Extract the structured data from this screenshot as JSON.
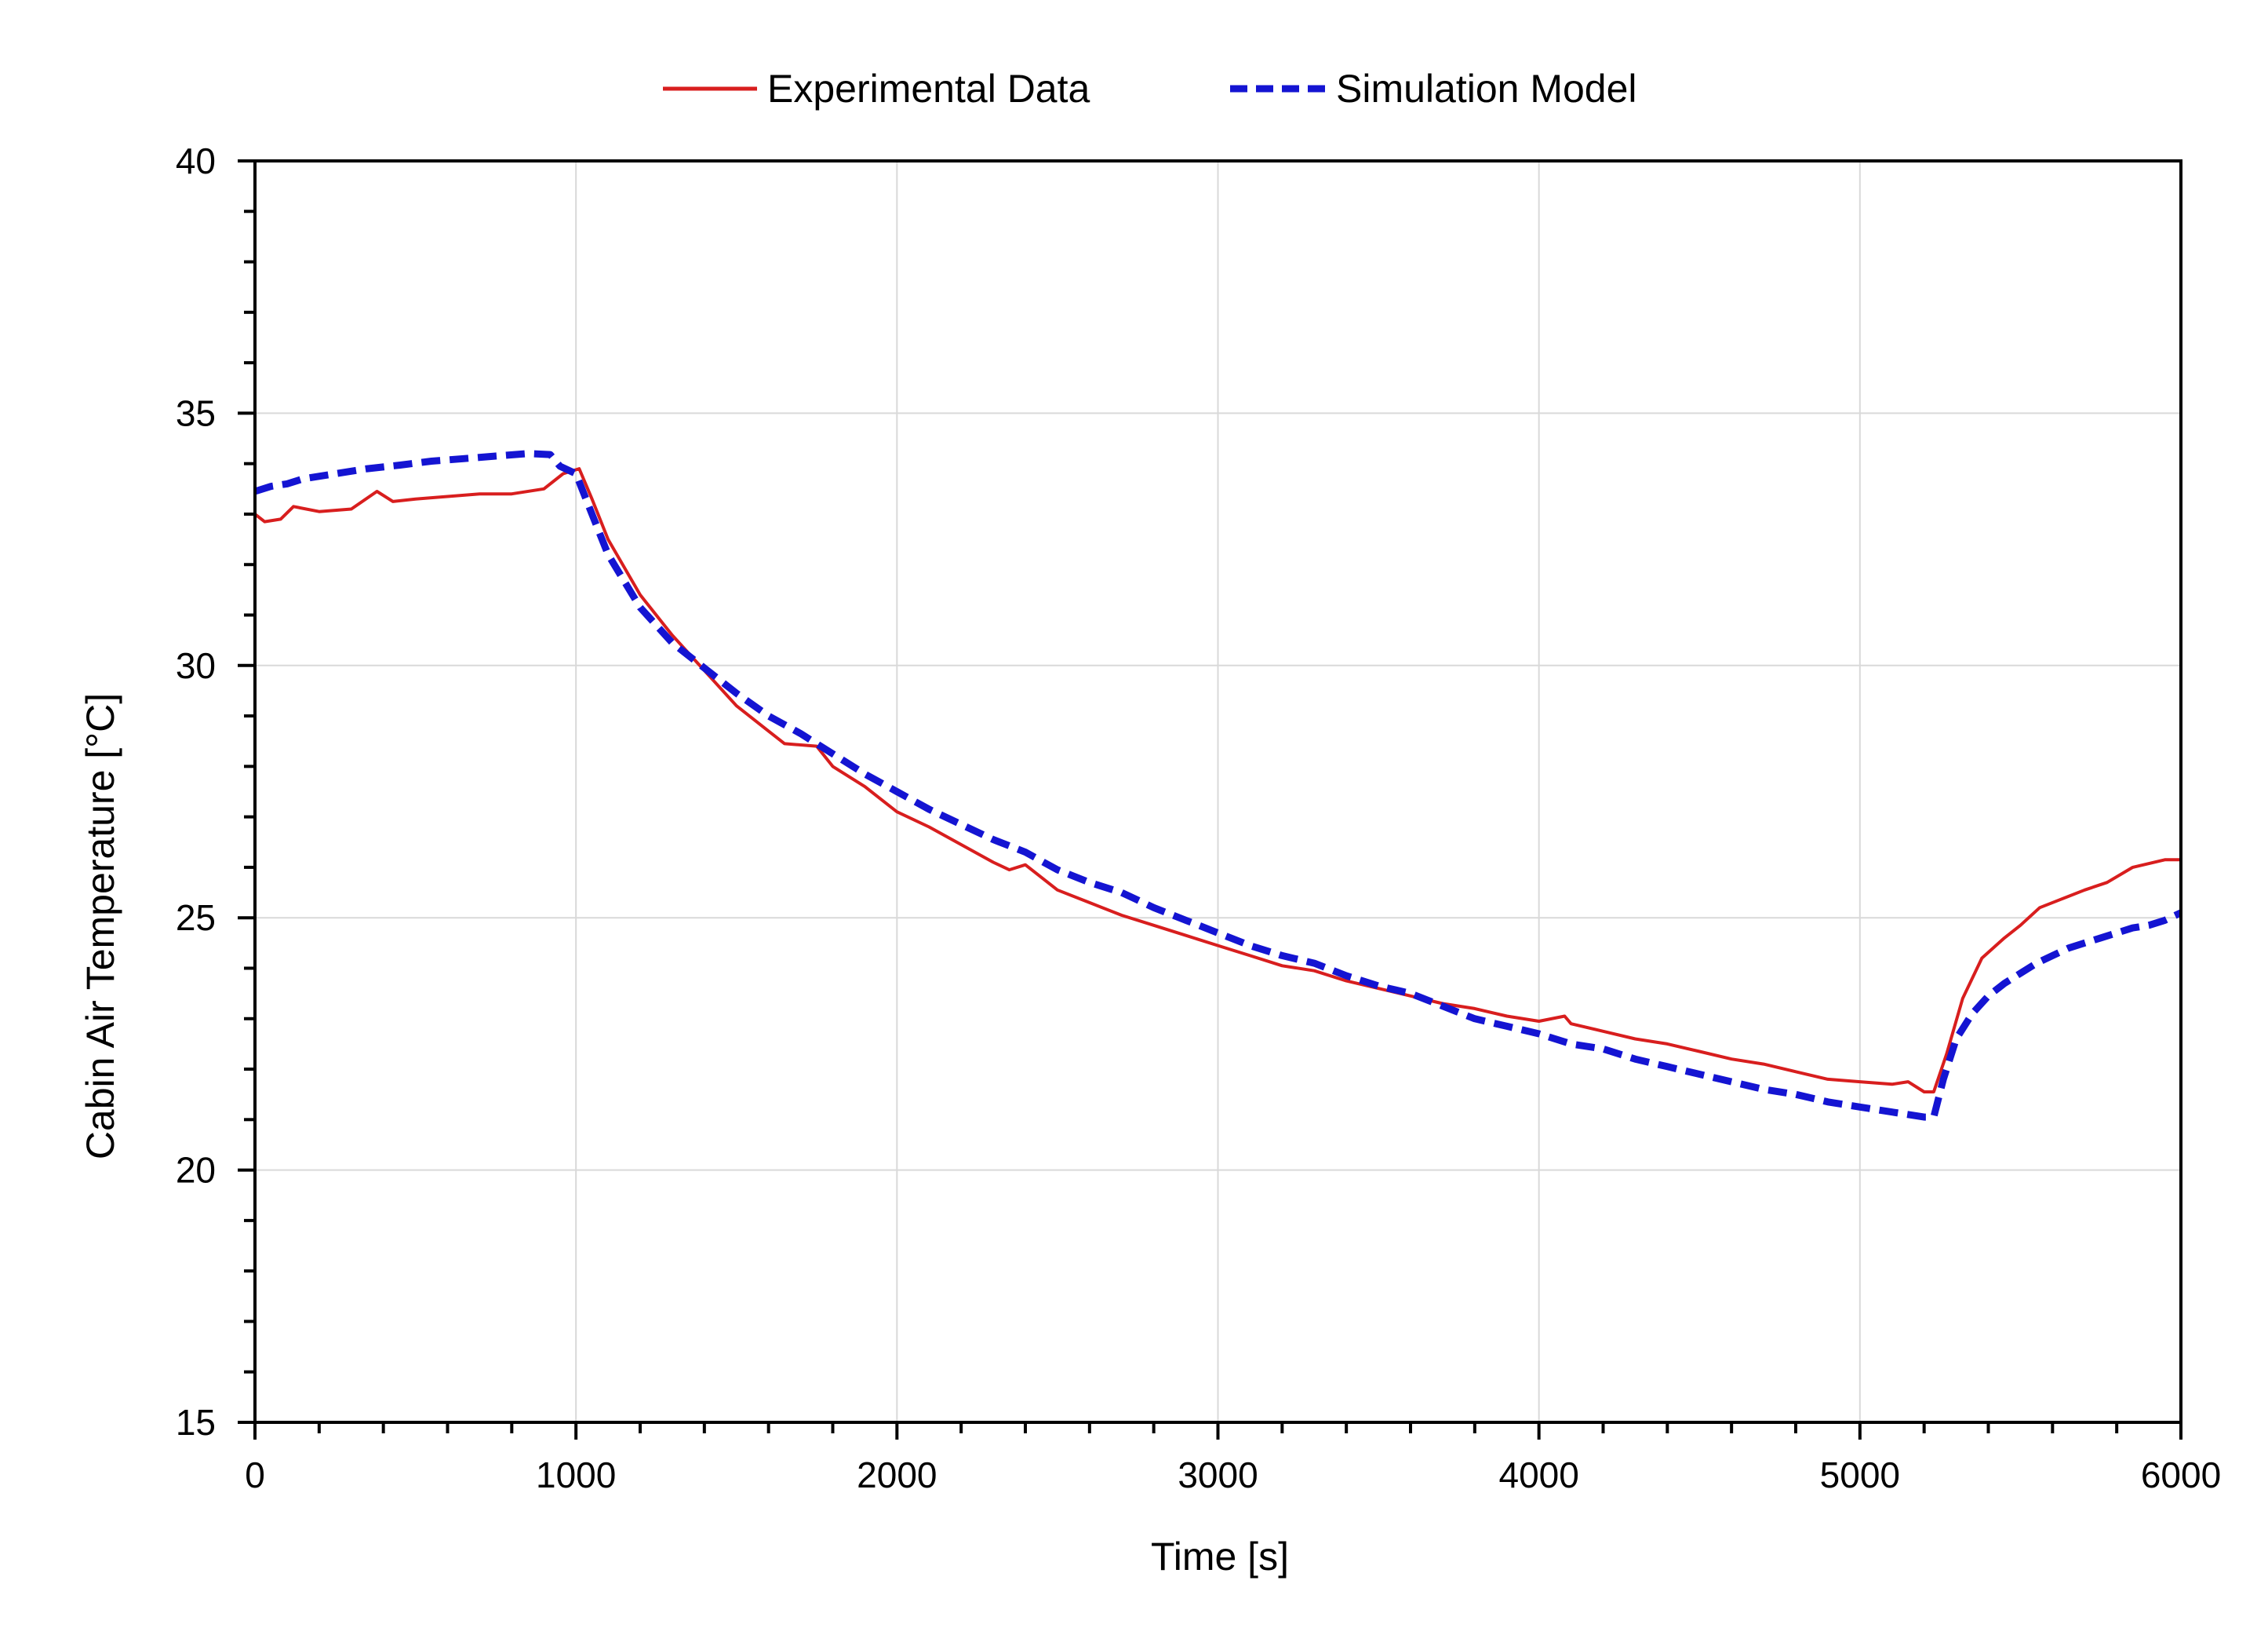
{
  "chart_data": {
    "type": "line",
    "title": "",
    "xlabel": "Time [s]",
    "ylabel": "Cabin Air Temperature [°C]",
    "xlim": [
      0,
      6000
    ],
    "ylim": [
      15,
      40
    ],
    "xticks": [
      0,
      1000,
      2000,
      3000,
      4000,
      5000,
      6000
    ],
    "yticks": [
      15,
      20,
      25,
      30,
      35,
      40
    ],
    "x_minor_step": 200,
    "y_minor_step": 1,
    "grid": true,
    "legend_position": "top-center",
    "series": [
      {
        "name": "Experimental Data",
        "color": "#d81e1e",
        "style": "solid",
        "points": [
          [
            0,
            33.0
          ],
          [
            30,
            32.85
          ],
          [
            80,
            32.9
          ],
          [
            120,
            33.15
          ],
          [
            200,
            33.05
          ],
          [
            300,
            33.1
          ],
          [
            380,
            33.45
          ],
          [
            430,
            33.25
          ],
          [
            500,
            33.3
          ],
          [
            600,
            33.35
          ],
          [
            700,
            33.4
          ],
          [
            800,
            33.4
          ],
          [
            900,
            33.5
          ],
          [
            960,
            33.8
          ],
          [
            1010,
            33.9
          ],
          [
            1050,
            33.3
          ],
          [
            1100,
            32.5
          ],
          [
            1200,
            31.4
          ],
          [
            1300,
            30.6
          ],
          [
            1400,
            29.9
          ],
          [
            1500,
            29.2
          ],
          [
            1600,
            28.7
          ],
          [
            1650,
            28.45
          ],
          [
            1750,
            28.4
          ],
          [
            1800,
            28.0
          ],
          [
            1900,
            27.6
          ],
          [
            2000,
            27.1
          ],
          [
            2100,
            26.8
          ],
          [
            2200,
            26.45
          ],
          [
            2300,
            26.1
          ],
          [
            2350,
            25.95
          ],
          [
            2400,
            26.05
          ],
          [
            2500,
            25.55
          ],
          [
            2600,
            25.3
          ],
          [
            2700,
            25.05
          ],
          [
            2800,
            24.85
          ],
          [
            2900,
            24.65
          ],
          [
            3000,
            24.45
          ],
          [
            3100,
            24.25
          ],
          [
            3200,
            24.05
          ],
          [
            3300,
            23.95
          ],
          [
            3400,
            23.75
          ],
          [
            3500,
            23.6
          ],
          [
            3600,
            23.45
          ],
          [
            3700,
            23.3
          ],
          [
            3800,
            23.2
          ],
          [
            3900,
            23.05
          ],
          [
            4000,
            22.95
          ],
          [
            4080,
            23.05
          ],
          [
            4100,
            22.9
          ],
          [
            4200,
            22.75
          ],
          [
            4300,
            22.6
          ],
          [
            4400,
            22.5
          ],
          [
            4500,
            22.35
          ],
          [
            4600,
            22.2
          ],
          [
            4700,
            22.1
          ],
          [
            4800,
            21.95
          ],
          [
            4900,
            21.8
          ],
          [
            5000,
            21.75
          ],
          [
            5100,
            21.7
          ],
          [
            5150,
            21.75
          ],
          [
            5200,
            21.55
          ],
          [
            5230,
            21.55
          ],
          [
            5270,
            22.3
          ],
          [
            5320,
            23.4
          ],
          [
            5380,
            24.2
          ],
          [
            5450,
            24.6
          ],
          [
            5500,
            24.85
          ],
          [
            5560,
            25.2
          ],
          [
            5620,
            25.35
          ],
          [
            5700,
            25.55
          ],
          [
            5770,
            25.7
          ],
          [
            5850,
            26.0
          ],
          [
            5950,
            26.15
          ],
          [
            6000,
            26.15
          ]
        ]
      },
      {
        "name": "Simulation Model",
        "color": "#1414d2",
        "style": "dashed",
        "points": [
          [
            0,
            33.45
          ],
          [
            50,
            33.55
          ],
          [
            100,
            33.6
          ],
          [
            150,
            33.7
          ],
          [
            250,
            33.8
          ],
          [
            350,
            33.9
          ],
          [
            450,
            33.97
          ],
          [
            550,
            34.05
          ],
          [
            650,
            34.1
          ],
          [
            750,
            34.15
          ],
          [
            850,
            34.2
          ],
          [
            920,
            34.18
          ],
          [
            950,
            33.95
          ],
          [
            1000,
            33.8
          ],
          [
            1050,
            33.0
          ],
          [
            1100,
            32.2
          ],
          [
            1200,
            31.15
          ],
          [
            1300,
            30.45
          ],
          [
            1400,
            29.95
          ],
          [
            1500,
            29.45
          ],
          [
            1600,
            29.0
          ],
          [
            1700,
            28.65
          ],
          [
            1800,
            28.25
          ],
          [
            1900,
            27.85
          ],
          [
            2000,
            27.5
          ],
          [
            2100,
            27.15
          ],
          [
            2200,
            26.85
          ],
          [
            2300,
            26.55
          ],
          [
            2400,
            26.3
          ],
          [
            2500,
            25.95
          ],
          [
            2600,
            25.7
          ],
          [
            2700,
            25.5
          ],
          [
            2800,
            25.2
          ],
          [
            2900,
            24.95
          ],
          [
            3000,
            24.7
          ],
          [
            3100,
            24.45
          ],
          [
            3200,
            24.25
          ],
          [
            3300,
            24.1
          ],
          [
            3400,
            23.85
          ],
          [
            3500,
            23.65
          ],
          [
            3600,
            23.5
          ],
          [
            3700,
            23.25
          ],
          [
            3800,
            23.0
          ],
          [
            3900,
            22.85
          ],
          [
            4000,
            22.7
          ],
          [
            4100,
            22.5
          ],
          [
            4200,
            22.4
          ],
          [
            4300,
            22.2
          ],
          [
            4400,
            22.05
          ],
          [
            4500,
            21.9
          ],
          [
            4600,
            21.75
          ],
          [
            4700,
            21.6
          ],
          [
            4800,
            21.5
          ],
          [
            4900,
            21.35
          ],
          [
            5000,
            21.25
          ],
          [
            5100,
            21.15
          ],
          [
            5200,
            21.05
          ],
          [
            5230,
            21.05
          ],
          [
            5260,
            21.8
          ],
          [
            5300,
            22.6
          ],
          [
            5350,
            23.1
          ],
          [
            5400,
            23.45
          ],
          [
            5450,
            23.7
          ],
          [
            5500,
            23.9
          ],
          [
            5550,
            24.1
          ],
          [
            5600,
            24.25
          ],
          [
            5650,
            24.4
          ],
          [
            5700,
            24.5
          ],
          [
            5750,
            24.6
          ],
          [
            5800,
            24.7
          ],
          [
            5850,
            24.8
          ],
          [
            5900,
            24.85
          ],
          [
            5950,
            24.95
          ],
          [
            6000,
            25.1
          ]
        ]
      }
    ]
  }
}
